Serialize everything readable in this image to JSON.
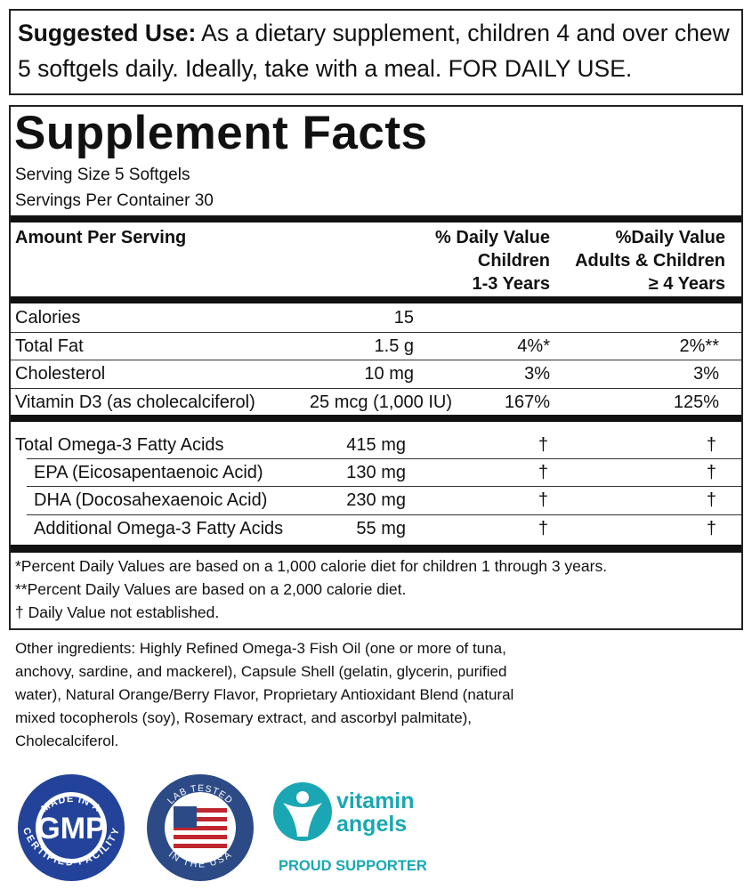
{
  "suggested_use": {
    "label": "Suggested Use:",
    "text": "As a dietary supplement, children 4 and over chew 5 softgels daily. Ideally, take with a meal. FOR DAILY USE."
  },
  "facts": {
    "title": "Supplement Facts",
    "serving_size": "Serving Size 5 Softgels",
    "servings_per_container": "Servings Per Container 30",
    "header": {
      "amount": "Amount Per Serving",
      "dv_children": [
        "% Daily Value",
        "Children",
        "1-3 Years"
      ],
      "dv_adults": [
        "%Daily Value",
        "Adults & Children",
        "≥ 4 Years"
      ]
    },
    "nutrients": [
      [
        "Calories",
        "15"
      ],
      [
        "Total Fat",
        "1.5 g",
        "4%*",
        "2%**"
      ],
      [
        "Cholesterol",
        "10 mg",
        "3%",
        "3%"
      ],
      [
        "Vitamin D3 (as cholecalciferol)",
        "25 mcg (1,000 IU)",
        "167%",
        "125%"
      ]
    ],
    "omega": [
      [
        "Total Omega-3 Fatty Acids",
        "415 mg",
        "†",
        "†"
      ],
      [
        "EPA (Eicosapentaenoic Acid)",
        "130 mg",
        "†",
        "†"
      ],
      [
        "DHA (Docosahexaenoic Acid)",
        "230 mg",
        "†",
        "†"
      ],
      [
        "Additional Omega-3 Fatty Acids",
        "55 mg",
        "†",
        "†"
      ]
    ],
    "footnotes": [
      "*Percent Daily Values are based on a 1,000 calorie diet for children 1 through 3 years.",
      "**Percent Daily Values are based on a 2,000 calorie diet.",
      "† Daily Value not established."
    ]
  },
  "other_ingredients": "Other ingredients: Highly Refined Omega-3 Fish Oil (one or more of tuna, anchovy, sardine, and mackerel), Capsule Shell (gelatin, glycerin, purified water), Natural Orange/Berry Flavor, Proprietary Antioxidant Blend (natural mixed tocopherols (soy), Rosemary extract, and ascorbyl palmitate), Cholecalciferol.",
  "badges": {
    "gmp": {
      "top": "MADE IN A",
      "center": "GMP",
      "bottom": "CERTIFIED FACILITY"
    },
    "lab": {
      "top": "LAB TESTED",
      "bottom": "IN THE USA"
    },
    "vitamin_angels": {
      "line1": "vitamin",
      "line2": "angels",
      "tagline": "PROUD SUPPORTER"
    }
  }
}
